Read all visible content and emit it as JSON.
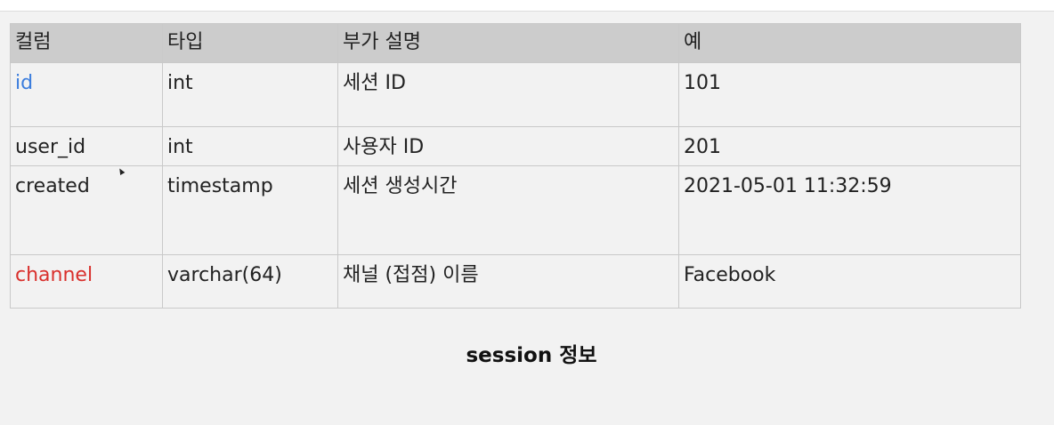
{
  "table": {
    "headers": [
      "컬럼",
      "타입",
      "부가 설명",
      "예"
    ],
    "rows": [
      {
        "name": "id",
        "type": "int",
        "description": "세션 ID",
        "example": "101"
      },
      {
        "name": "user_id",
        "type": "int",
        "description": "사용자 ID",
        "example": "201"
      },
      {
        "name": "created",
        "type": "timestamp",
        "description": "세션 생성시간",
        "example": "2021-05-01 11:32:59"
      },
      {
        "name": "channel",
        "type": "varchar(64)",
        "description": "채널 (접점) 이름",
        "example": "Facebook"
      }
    ]
  },
  "caption": "session 정보",
  "colors": {
    "primary_key": "#3b7ddd",
    "highlight": "#d9302c",
    "header_bg": "#cccccc",
    "slide_bg": "#f2f2f2"
  },
  "icons": {
    "cursor": "mouse-pointer-icon"
  }
}
